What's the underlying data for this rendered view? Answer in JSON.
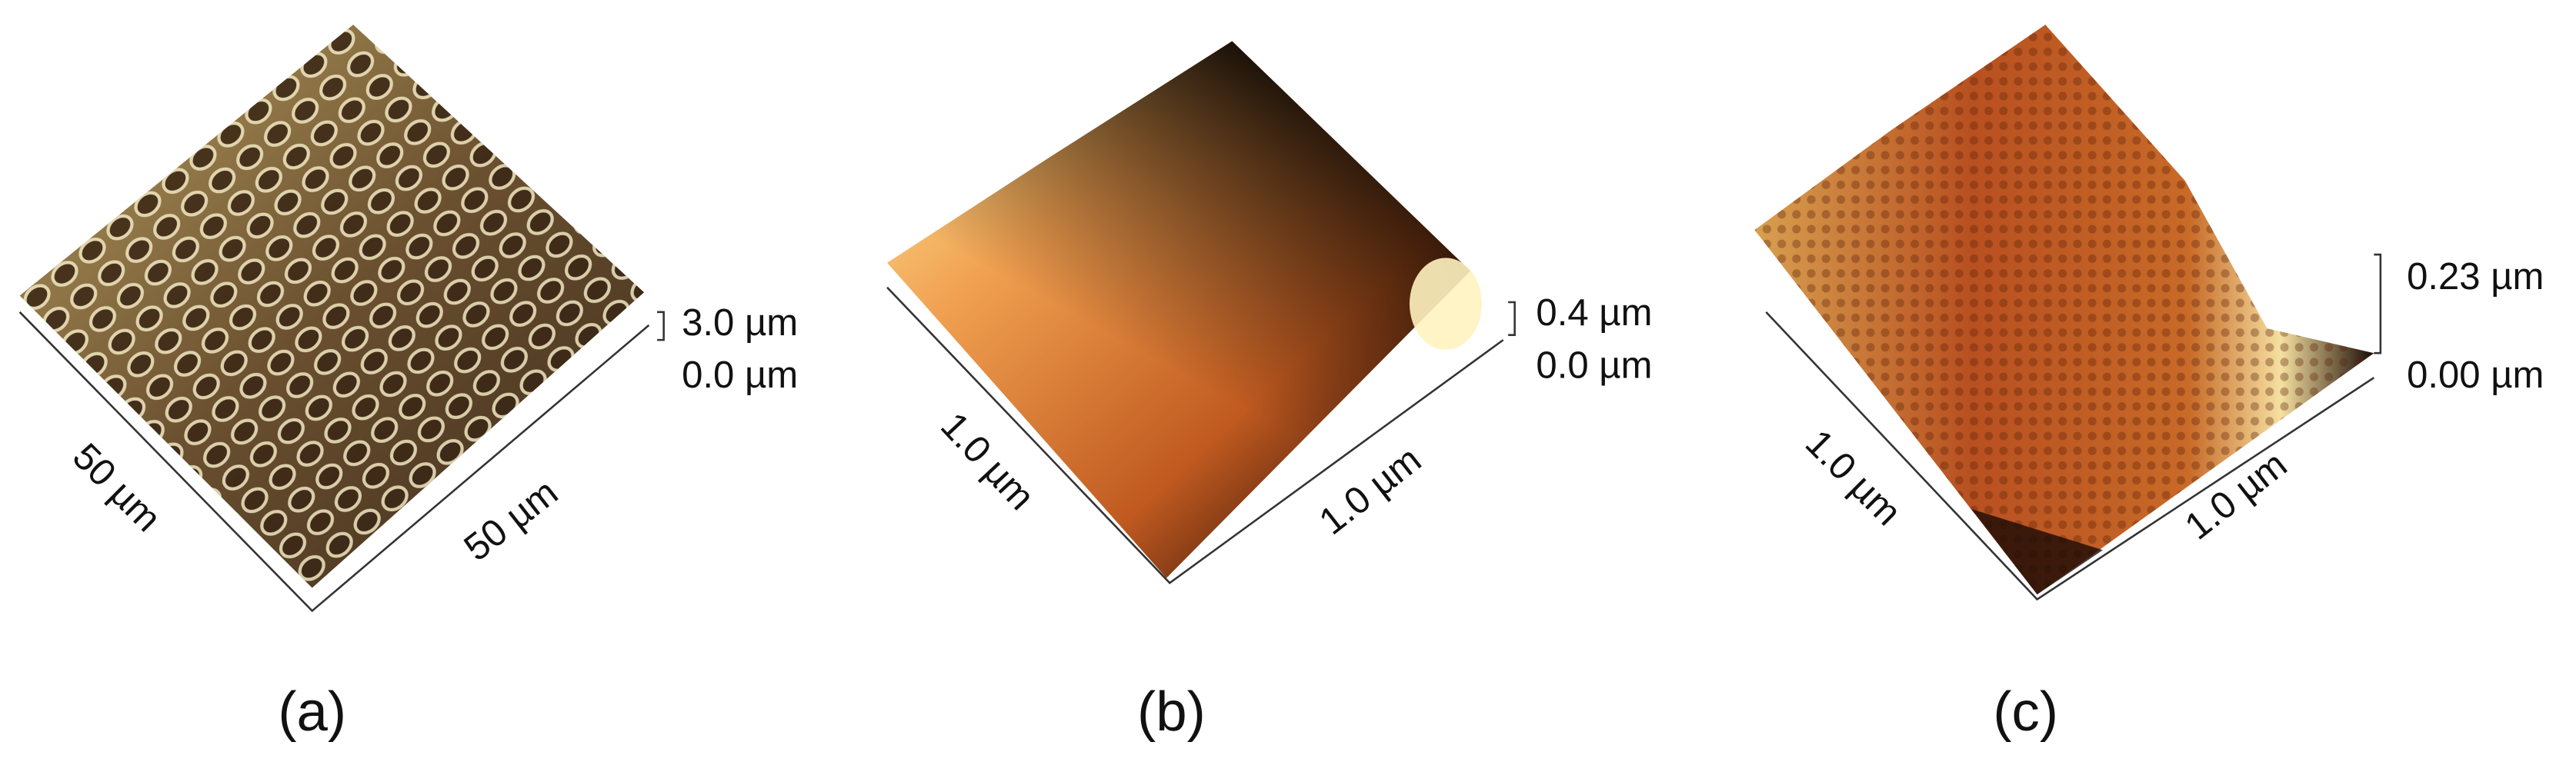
{
  "panels": [
    {
      "label": "(a)",
      "z_top": "3.0 µm",
      "z_bottom": "0.0 µm",
      "left_axis": "50 µm",
      "right_axis": "50 µm"
    },
    {
      "label": "(b)",
      "z_top": "0.4 µm",
      "z_bottom": "0.0 µm",
      "left_axis": "1.0 µm",
      "right_axis": "1.0 µm"
    },
    {
      "label": "(c)",
      "z_top": "0.23 µm",
      "z_bottom": "0.00 µm",
      "left_axis": "1.0 µm",
      "right_axis": "1.0 µm"
    }
  ]
}
